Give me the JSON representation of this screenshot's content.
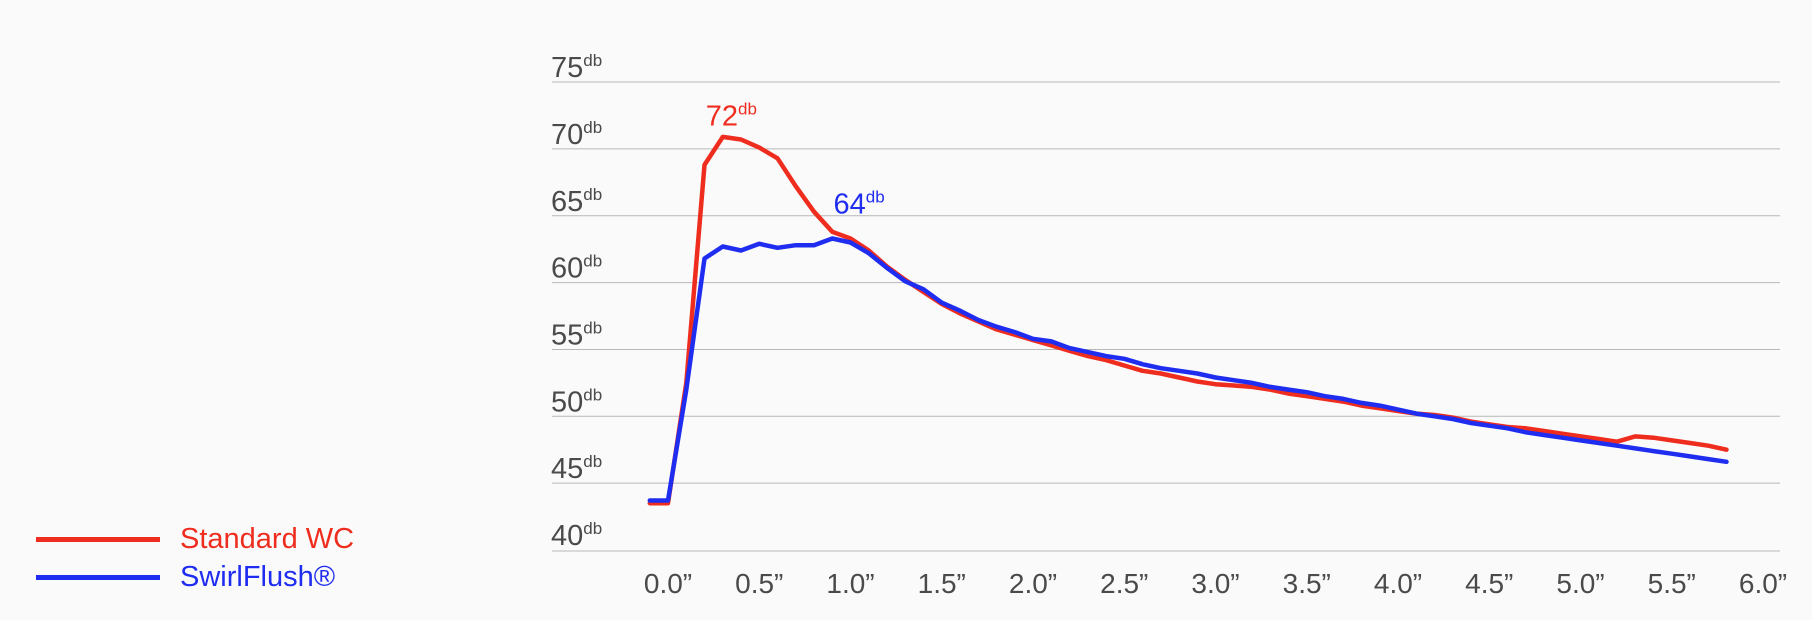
{
  "chart_data": {
    "type": "line",
    "x_unit": "”",
    "y_unit": "db",
    "x_ticks": [
      "0.0”",
      "0.5”",
      "1.0”",
      "1.5”",
      "2.0”",
      "2.5”",
      "3.0”",
      "3.5”",
      "4.0”",
      "4.5”",
      "5.0”",
      "5.5”",
      "6.0”"
    ],
    "y_ticks": [
      {
        "num": "75",
        "sup": "db"
      },
      {
        "num": "70",
        "sup": "db"
      },
      {
        "num": "65",
        "sup": "db"
      },
      {
        "num": "60",
        "sup": "db"
      },
      {
        "num": "55",
        "sup": "db"
      },
      {
        "num": "50",
        "sup": "db"
      },
      {
        "num": "45",
        "sup": "db"
      },
      {
        "num": "40",
        "sup": "db"
      }
    ],
    "xlim": [
      -0.1,
      6.0
    ],
    "ylim": [
      40,
      75
    ],
    "grid": true,
    "legend_position": "bottom-left",
    "series": [
      {
        "name": "Standard WC",
        "color": "#ef2d1f",
        "points": [
          [
            -0.1,
            43.5
          ],
          [
            0.0,
            43.5
          ],
          [
            0.1,
            52.5
          ],
          [
            0.2,
            68.8
          ],
          [
            0.3,
            70.9
          ],
          [
            0.4,
            70.7
          ],
          [
            0.5,
            70.1
          ],
          [
            0.6,
            69.3
          ],
          [
            0.7,
            67.2
          ],
          [
            0.8,
            65.3
          ],
          [
            0.9,
            63.8
          ],
          [
            1.0,
            63.3
          ],
          [
            1.1,
            62.4
          ],
          [
            1.2,
            61.2
          ],
          [
            1.3,
            60.2
          ],
          [
            1.4,
            59.3
          ],
          [
            1.5,
            58.4
          ],
          [
            1.6,
            57.7
          ],
          [
            1.7,
            57.1
          ],
          [
            1.8,
            56.5
          ],
          [
            1.9,
            56.1
          ],
          [
            2.0,
            55.7
          ],
          [
            2.1,
            55.3
          ],
          [
            2.2,
            54.9
          ],
          [
            2.3,
            54.5
          ],
          [
            2.4,
            54.2
          ],
          [
            2.5,
            53.8
          ],
          [
            2.6,
            53.4
          ],
          [
            2.7,
            53.2
          ],
          [
            2.8,
            52.9
          ],
          [
            2.9,
            52.6
          ],
          [
            3.0,
            52.4
          ],
          [
            3.1,
            52.3
          ],
          [
            3.2,
            52.2
          ],
          [
            3.3,
            52.0
          ],
          [
            3.4,
            51.7
          ],
          [
            3.5,
            51.5
          ],
          [
            3.6,
            51.3
          ],
          [
            3.7,
            51.1
          ],
          [
            3.8,
            50.8
          ],
          [
            3.9,
            50.6
          ],
          [
            4.0,
            50.4
          ],
          [
            4.1,
            50.2
          ],
          [
            4.2,
            50.1
          ],
          [
            4.3,
            49.9
          ],
          [
            4.4,
            49.6
          ],
          [
            4.5,
            49.4
          ],
          [
            4.6,
            49.2
          ],
          [
            4.7,
            49.1
          ],
          [
            4.8,
            48.9
          ],
          [
            4.9,
            48.7
          ],
          [
            5.0,
            48.5
          ],
          [
            5.1,
            48.3
          ],
          [
            5.2,
            48.1
          ],
          [
            5.3,
            48.5
          ],
          [
            5.4,
            48.4
          ],
          [
            5.5,
            48.2
          ],
          [
            5.6,
            48.0
          ],
          [
            5.7,
            47.8
          ],
          [
            5.8,
            47.5
          ]
        ]
      },
      {
        "name": "SwirlFlush®",
        "color": "#1f2df0",
        "points": [
          [
            -0.1,
            43.7
          ],
          [
            0.0,
            43.7
          ],
          [
            0.1,
            52.0
          ],
          [
            0.2,
            61.8
          ],
          [
            0.3,
            62.7
          ],
          [
            0.4,
            62.4
          ],
          [
            0.5,
            62.9
          ],
          [
            0.6,
            62.6
          ],
          [
            0.7,
            62.8
          ],
          [
            0.8,
            62.8
          ],
          [
            0.9,
            63.3
          ],
          [
            1.0,
            63.0
          ],
          [
            1.1,
            62.2
          ],
          [
            1.2,
            61.1
          ],
          [
            1.3,
            60.1
          ],
          [
            1.4,
            59.5
          ],
          [
            1.5,
            58.5
          ],
          [
            1.6,
            57.9
          ],
          [
            1.7,
            57.2
          ],
          [
            1.8,
            56.7
          ],
          [
            1.9,
            56.3
          ],
          [
            2.0,
            55.8
          ],
          [
            2.1,
            55.6
          ],
          [
            2.2,
            55.1
          ],
          [
            2.3,
            54.8
          ],
          [
            2.4,
            54.5
          ],
          [
            2.5,
            54.3
          ],
          [
            2.6,
            53.9
          ],
          [
            2.7,
            53.6
          ],
          [
            2.8,
            53.4
          ],
          [
            2.9,
            53.2
          ],
          [
            3.0,
            52.9
          ],
          [
            3.1,
            52.7
          ],
          [
            3.2,
            52.5
          ],
          [
            3.3,
            52.2
          ],
          [
            3.4,
            52.0
          ],
          [
            3.5,
            51.8
          ],
          [
            3.6,
            51.5
          ],
          [
            3.7,
            51.3
          ],
          [
            3.8,
            51.0
          ],
          [
            3.9,
            50.8
          ],
          [
            4.0,
            50.5
          ],
          [
            4.1,
            50.2
          ],
          [
            4.2,
            50.0
          ],
          [
            4.3,
            49.8
          ],
          [
            4.4,
            49.5
          ],
          [
            4.5,
            49.3
          ],
          [
            4.6,
            49.1
          ],
          [
            4.7,
            48.8
          ],
          [
            4.8,
            48.6
          ],
          [
            4.9,
            48.4
          ],
          [
            5.0,
            48.2
          ],
          [
            5.1,
            48.0
          ],
          [
            5.2,
            47.8
          ],
          [
            5.3,
            47.6
          ],
          [
            5.4,
            47.4
          ],
          [
            5.5,
            47.2
          ],
          [
            5.6,
            47.0
          ],
          [
            5.7,
            46.8
          ],
          [
            5.8,
            46.6
          ]
        ]
      }
    ],
    "annotations": [
      {
        "num": "72",
        "sup": "db",
        "x": 0.3,
        "y": 72.5,
        "color": "#ef2d1f"
      },
      {
        "num": "64",
        "sup": "db",
        "x": 1.0,
        "y": 65.9,
        "color": "#1f2df0"
      }
    ]
  }
}
